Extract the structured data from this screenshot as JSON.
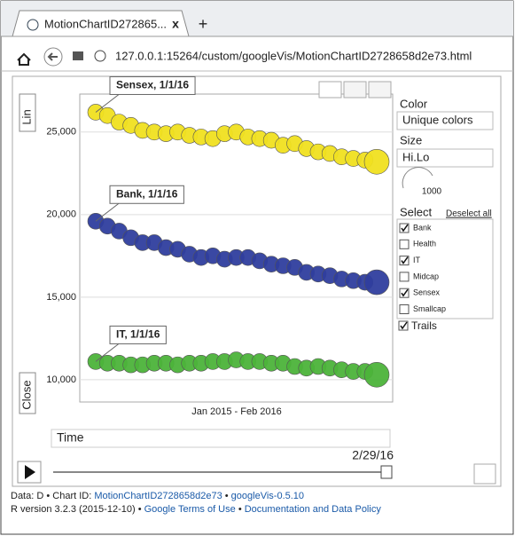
{
  "browser": {
    "tab_title": "MotionChartID272865...",
    "tab_close": "x",
    "new_tab": "+",
    "url": "127.0.0.1:15264/custom/googleVis/MotionChartID2728658d2e73.html"
  },
  "chart": {
    "type": "bubble",
    "y_scale": "Lin",
    "y_label": "Close",
    "x_label": "Jan 2015 - Feb 2016",
    "ylim": [
      8650,
      27300
    ],
    "yticks": [
      {
        "value": 10000,
        "label": "10,000"
      },
      {
        "value": 15000,
        "label": "15,000"
      },
      {
        "value": 20000,
        "label": "20,000"
      },
      {
        "value": 25000,
        "label": "25,000"
      }
    ],
    "grid": true,
    "series": [
      {
        "callout": "Sensex, 1/1/16",
        "color": "#f0e020",
        "values": [
          26200,
          26000,
          25600,
          25400,
          25100,
          25000,
          24900,
          25000,
          24800,
          24700,
          24600,
          24900,
          25000,
          24700,
          24600,
          24500,
          24200,
          24300,
          24000,
          23800,
          23700,
          23500,
          23400,
          23300,
          23200
        ]
      },
      {
        "callout": "Bank, 1/1/16",
        "color": "#2f3e9e",
        "values": [
          19600,
          19300,
          19000,
          18600,
          18300,
          18300,
          18000,
          17900,
          17600,
          17400,
          17500,
          17300,
          17400,
          17400,
          17200,
          17000,
          16900,
          16800,
          16500,
          16400,
          16300,
          16100,
          16000,
          15900,
          15900
        ]
      },
      {
        "callout": "IT, 1/1/16",
        "color": "#4cb33a",
        "values": [
          11100,
          11000,
          11000,
          10900,
          10900,
          11000,
          11000,
          10900,
          11000,
          11000,
          11100,
          11100,
          11200,
          11100,
          11100,
          11000,
          11000,
          10800,
          10700,
          10800,
          10700,
          10600,
          10500,
          10500,
          10300
        ]
      }
    ]
  },
  "controls": {
    "color_label": "Color",
    "color_value": "Unique colors",
    "size_label": "Size",
    "size_value": "Hi.Lo",
    "size_legend": "1000",
    "select_label": "Select",
    "deselect_all": "Deselect all",
    "items": [
      {
        "name": "Bank",
        "checked": true
      },
      {
        "name": "Health",
        "checked": false
      },
      {
        "name": "IT",
        "checked": true
      },
      {
        "name": "Midcap",
        "checked": false
      },
      {
        "name": "Sensex",
        "checked": true
      },
      {
        "name": "Smallcap",
        "checked": false
      }
    ],
    "trails": {
      "label": "Trails",
      "checked": true
    },
    "time_label": "Time",
    "date": "2/29/16"
  },
  "footer": {
    "data": "Data: D",
    "separator": "•",
    "chart_id_label": "Chart ID:",
    "chart_id": "MotionChartID2728658d2e73",
    "version": "googleVis-0.5.10",
    "r_version": "R version 3.2.3 (2015-12-10)",
    "terms": "Google Terms of Use",
    "policy": "Documentation and Data Policy"
  }
}
